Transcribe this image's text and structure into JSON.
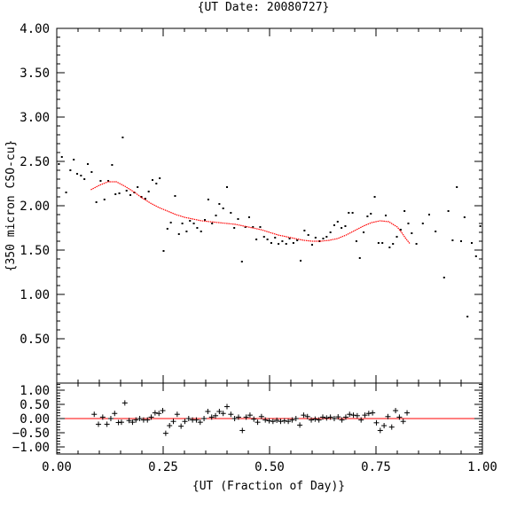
{
  "chart_data": [
    {
      "type": "scatter",
      "title": "{UT Date: 20080727}",
      "ylabel": "{350 micron CSO-cu}",
      "xlabel": "",
      "xlim": [
        0.0,
        1.0
      ],
      "ylim": [
        0.0,
        4.0
      ],
      "x_ticks": [
        "0.00",
        "0.25",
        "0.50",
        "0.75",
        "1.00"
      ],
      "y_ticks": [
        "0.50",
        "1.00",
        "1.50",
        "2.00",
        "2.50",
        "3.00",
        "3.50",
        "4.00"
      ],
      "grid": false,
      "series": [
        {
          "marker": "dot",
          "color": "#000000",
          "points": [
            [
              0.005,
              2.47
            ],
            [
              0.012,
              2.55
            ],
            [
              0.022,
              2.15
            ],
            [
              0.032,
              2.4
            ],
            [
              0.04,
              2.52
            ],
            [
              0.048,
              2.36
            ],
            [
              0.057,
              2.34
            ],
            [
              0.065,
              2.3
            ],
            [
              0.073,
              2.47
            ],
            [
              0.082,
              2.38
            ],
            [
              0.093,
              2.04
            ],
            [
              0.103,
              2.28
            ],
            [
              0.112,
              2.07
            ],
            [
              0.121,
              2.28
            ],
            [
              0.13,
              2.46
            ],
            [
              0.138,
              2.13
            ],
            [
              0.147,
              2.14
            ],
            [
              0.155,
              2.77
            ],
            [
              0.164,
              2.17
            ],
            [
              0.173,
              2.12
            ],
            [
              0.182,
              2.15
            ],
            [
              0.19,
              2.21
            ],
            [
              0.199,
              2.1
            ],
            [
              0.208,
              2.08
            ],
            [
              0.216,
              2.16
            ],
            [
              0.225,
              2.29
            ],
            [
              0.234,
              2.25
            ],
            [
              0.242,
              2.31
            ],
            [
              0.251,
              1.49
            ],
            [
              0.26,
              1.74
            ],
            [
              0.268,
              1.81
            ],
            [
              0.278,
              2.11
            ],
            [
              0.287,
              1.68
            ],
            [
              0.295,
              1.8
            ],
            [
              0.305,
              1.71
            ],
            [
              0.313,
              1.83
            ],
            [
              0.322,
              1.8
            ],
            [
              0.33,
              1.75
            ],
            [
              0.339,
              1.71
            ],
            [
              0.348,
              1.84
            ],
            [
              0.356,
              2.07
            ],
            [
              0.365,
              1.8
            ],
            [
              0.374,
              1.89
            ],
            [
              0.382,
              2.02
            ],
            [
              0.391,
              1.97
            ],
            [
              0.4,
              2.21
            ],
            [
              0.409,
              1.92
            ],
            [
              0.417,
              1.75
            ],
            [
              0.426,
              1.85
            ],
            [
              0.435,
              1.37
            ],
            [
              0.443,
              1.76
            ],
            [
              0.452,
              1.87
            ],
            [
              0.461,
              1.76
            ],
            [
              0.469,
              1.62
            ],
            [
              0.478,
              1.76
            ],
            [
              0.487,
              1.65
            ],
            [
              0.495,
              1.62
            ],
            [
              0.504,
              1.58
            ],
            [
              0.513,
              1.64
            ],
            [
              0.521,
              1.57
            ],
            [
              0.53,
              1.6
            ],
            [
              0.539,
              1.57
            ],
            [
              0.547,
              1.63
            ],
            [
              0.556,
              1.58
            ],
            [
              0.565,
              1.61
            ],
            [
              0.573,
              1.38
            ],
            [
              0.582,
              1.72
            ],
            [
              0.591,
              1.67
            ],
            [
              0.6,
              1.56
            ],
            [
              0.608,
              1.64
            ],
            [
              0.617,
              1.6
            ],
            [
              0.626,
              1.63
            ],
            [
              0.634,
              1.65
            ],
            [
              0.643,
              1.7
            ],
            [
              0.652,
              1.78
            ],
            [
              0.66,
              1.82
            ],
            [
              0.669,
              1.75
            ],
            [
              0.678,
              1.77
            ],
            [
              0.686,
              1.92
            ],
            [
              0.695,
              1.92
            ],
            [
              0.704,
              1.6
            ],
            [
              0.712,
              1.41
            ],
            [
              0.721,
              1.7
            ],
            [
              0.73,
              1.88
            ],
            [
              0.738,
              1.91
            ],
            [
              0.747,
              2.1
            ],
            [
              0.756,
              1.58
            ],
            [
              0.765,
              1.58
            ],
            [
              0.773,
              1.89
            ],
            [
              0.782,
              1.53
            ],
            [
              0.79,
              1.57
            ],
            [
              0.799,
              1.65
            ],
            [
              0.808,
              1.73
            ],
            [
              0.817,
              1.94
            ],
            [
              0.826,
              1.8
            ],
            [
              0.834,
              1.69
            ],
            [
              0.845,
              1.57
            ],
            [
              0.86,
              1.8
            ],
            [
              0.875,
              1.9
            ],
            [
              0.89,
              1.71
            ],
            [
              0.91,
              1.19
            ],
            [
              0.92,
              1.94
            ],
            [
              0.93,
              1.61
            ],
            [
              0.94,
              2.21
            ],
            [
              0.95,
              1.6
            ],
            [
              0.958,
              1.87
            ],
            [
              0.965,
              0.75
            ],
            [
              0.975,
              1.58
            ],
            [
              0.985,
              1.43
            ],
            [
              0.995,
              1.77
            ]
          ]
        },
        {
          "marker": "line",
          "color": "#ff0000",
          "points": [
            [
              0.08,
              2.18
            ],
            [
              0.1,
              2.23
            ],
            [
              0.12,
              2.27
            ],
            [
              0.14,
              2.27
            ],
            [
              0.16,
              2.22
            ],
            [
              0.18,
              2.16
            ],
            [
              0.2,
              2.09
            ],
            [
              0.22,
              2.03
            ],
            [
              0.24,
              1.98
            ],
            [
              0.26,
              1.94
            ],
            [
              0.28,
              1.9
            ],
            [
              0.3,
              1.87
            ],
            [
              0.32,
              1.85
            ],
            [
              0.34,
              1.83
            ],
            [
              0.36,
              1.82
            ],
            [
              0.38,
              1.81
            ],
            [
              0.4,
              1.8
            ],
            [
              0.42,
              1.79
            ],
            [
              0.44,
              1.77
            ],
            [
              0.46,
              1.75
            ],
            [
              0.48,
              1.73
            ],
            [
              0.5,
              1.7
            ],
            [
              0.52,
              1.67
            ],
            [
              0.54,
              1.65
            ],
            [
              0.56,
              1.63
            ],
            [
              0.58,
              1.61
            ],
            [
              0.6,
              1.6
            ],
            [
              0.62,
              1.6
            ],
            [
              0.64,
              1.61
            ],
            [
              0.66,
              1.63
            ],
            [
              0.68,
              1.67
            ],
            [
              0.7,
              1.72
            ],
            [
              0.72,
              1.77
            ],
            [
              0.74,
              1.81
            ],
            [
              0.76,
              1.83
            ],
            [
              0.78,
              1.82
            ],
            [
              0.8,
              1.76
            ],
            [
              0.81,
              1.7
            ],
            [
              0.82,
              1.63
            ],
            [
              0.83,
              1.57
            ]
          ]
        }
      ]
    },
    {
      "type": "scatter",
      "title": "",
      "xlabel": "{UT (Fraction of Day)}",
      "ylabel": "",
      "xlim": [
        0.0,
        1.0
      ],
      "ylim": [
        -1.25,
        1.25
      ],
      "x_ticks": [
        "0.00",
        "0.25",
        "0.50",
        "0.75",
        "1.00"
      ],
      "y_ticks": [
        "−1.00",
        "−0.50",
        "0.00",
        "0.50",
        "1.00"
      ],
      "grid": false,
      "zero_line_color": "#ff0000",
      "series": [
        {
          "marker": "plus",
          "color": "#000000",
          "points": [
            [
              0.088,
              0.15
            ],
            [
              0.098,
              -0.2
            ],
            [
              0.108,
              0.05
            ],
            [
              0.118,
              -0.2
            ],
            [
              0.127,
              0.0
            ],
            [
              0.136,
              0.18
            ],
            [
              0.145,
              -0.14
            ],
            [
              0.152,
              -0.13
            ],
            [
              0.16,
              0.55
            ],
            [
              0.17,
              -0.07
            ],
            [
              0.178,
              -0.13
            ],
            [
              0.186,
              -0.05
            ],
            [
              0.195,
              0.0
            ],
            [
              0.204,
              -0.05
            ],
            [
              0.213,
              -0.05
            ],
            [
              0.222,
              0.05
            ],
            [
              0.231,
              0.2
            ],
            [
              0.24,
              0.18
            ],
            [
              0.249,
              0.28
            ],
            [
              0.256,
              -0.52
            ],
            [
              0.265,
              -0.25
            ],
            [
              0.274,
              -0.1
            ],
            [
              0.283,
              0.15
            ],
            [
              0.292,
              -0.27
            ],
            [
              0.301,
              -0.1
            ],
            [
              0.31,
              0.0
            ],
            [
              0.319,
              -0.05
            ],
            [
              0.328,
              -0.05
            ],
            [
              0.337,
              -0.13
            ],
            [
              0.346,
              0.0
            ],
            [
              0.355,
              0.25
            ],
            [
              0.364,
              0.05
            ],
            [
              0.373,
              0.1
            ],
            [
              0.382,
              0.25
            ],
            [
              0.391,
              0.18
            ],
            [
              0.4,
              0.42
            ],
            [
              0.409,
              0.15
            ],
            [
              0.418,
              0.0
            ],
            [
              0.427,
              0.05
            ],
            [
              0.436,
              -0.42
            ],
            [
              0.445,
              0.05
            ],
            [
              0.454,
              0.12
            ],
            [
              0.463,
              -0.02
            ],
            [
              0.472,
              -0.13
            ],
            [
              0.481,
              0.07
            ],
            [
              0.49,
              -0.05
            ],
            [
              0.499,
              -0.08
            ],
            [
              0.508,
              -0.1
            ],
            [
              0.517,
              -0.06
            ],
            [
              0.526,
              -0.1
            ],
            [
              0.535,
              -0.08
            ],
            [
              0.544,
              -0.1
            ],
            [
              0.553,
              -0.05
            ],
            [
              0.562,
              0.0
            ],
            [
              0.571,
              -0.23
            ],
            [
              0.58,
              0.12
            ],
            [
              0.589,
              0.07
            ],
            [
              0.598,
              -0.05
            ],
            [
              0.607,
              -0.02
            ],
            [
              0.616,
              -0.05
            ],
            [
              0.625,
              0.05
            ],
            [
              0.634,
              0.02
            ],
            [
              0.643,
              0.05
            ],
            [
              0.652,
              0.0
            ],
            [
              0.661,
              0.06
            ],
            [
              0.67,
              -0.05
            ],
            [
              0.679,
              0.05
            ],
            [
              0.688,
              0.15
            ],
            [
              0.697,
              0.12
            ],
            [
              0.706,
              0.1
            ],
            [
              0.715,
              -0.05
            ],
            [
              0.724,
              0.12
            ],
            [
              0.733,
              0.18
            ],
            [
              0.742,
              0.2
            ],
            [
              0.751,
              -0.15
            ],
            [
              0.76,
              -0.42
            ],
            [
              0.769,
              -0.25
            ],
            [
              0.778,
              0.07
            ],
            [
              0.787,
              -0.3
            ],
            [
              0.796,
              0.28
            ],
            [
              0.805,
              0.05
            ],
            [
              0.814,
              -0.1
            ],
            [
              0.823,
              0.2
            ]
          ]
        }
      ]
    }
  ]
}
